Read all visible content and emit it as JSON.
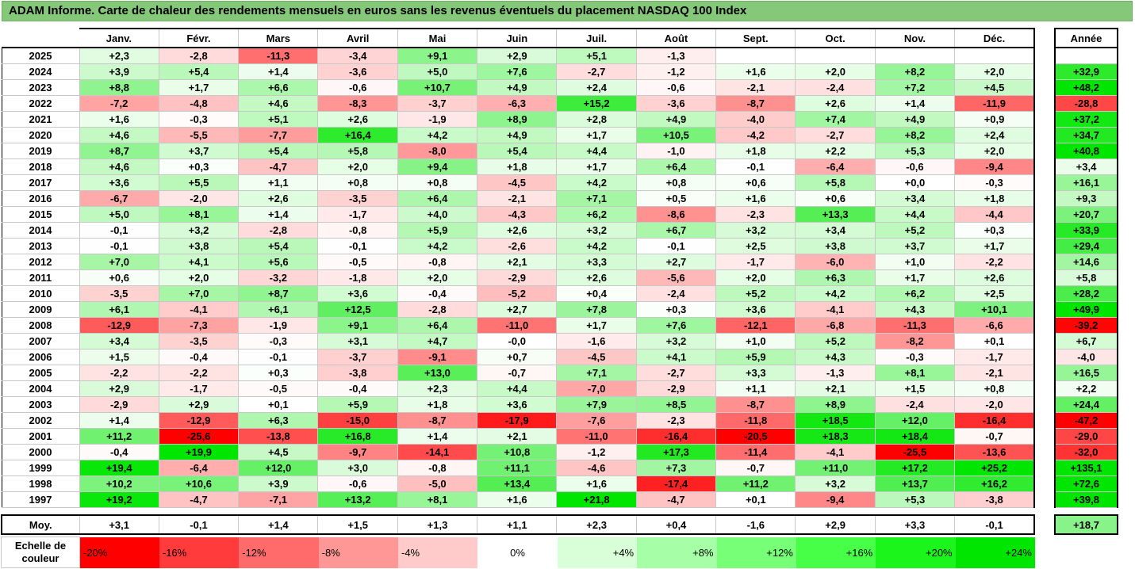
{
  "title": "ADAM Informe. Carte de chaleur des rendements mensuels en euros sans les revenus éventuels du placement NASDAQ 100 Index",
  "chart_data": {
    "type": "heatmap",
    "title": "ADAM Informe. Carte de chaleur des rendements mensuels en euros sans les revenus éventuels du placement NASDAQ 100 Index",
    "months": [
      "Janv.",
      "Févr.",
      "Mars",
      "Avril",
      "Mai",
      "Juin",
      "Juil.",
      "Août",
      "Sept.",
      "Oct.",
      "Nov.",
      "Déc."
    ],
    "year_column_label": "Année",
    "rows": [
      {
        "year": "2025",
        "values": [
          "+2,3",
          "-2,8",
          "-11,3",
          "-3,4",
          "+9,1",
          "+2,9",
          "+5,1",
          "-1,3",
          "",
          "",
          "",
          ""
        ],
        "annual": ""
      },
      {
        "year": "2024",
        "values": [
          "+3,9",
          "+5,4",
          "+1,4",
          "-3,6",
          "+5,0",
          "+7,6",
          "-2,7",
          "-1,2",
          "+1,6",
          "+2,0",
          "+8,2",
          "+2,0"
        ],
        "annual": "+32,9"
      },
      {
        "year": "2023",
        "values": [
          "+8,8",
          "+1,7",
          "+6,6",
          "-0,6",
          "+10,7",
          "+4,9",
          "+2,4",
          "-0,6",
          "-2,1",
          "-2,4",
          "+7,2",
          "+4,5"
        ],
        "annual": "+48,2"
      },
      {
        "year": "2022",
        "values": [
          "-7,2",
          "-4,8",
          "+4,6",
          "-8,3",
          "-3,7",
          "-6,3",
          "+15,2",
          "-3,6",
          "-8,7",
          "+2,6",
          "+1,4",
          "-11,9"
        ],
        "annual": "-28,8"
      },
      {
        "year": "2021",
        "values": [
          "+1,6",
          "-0,3",
          "+5,1",
          "+2,6",
          "-1,9",
          "+8,9",
          "+2,8",
          "+4,9",
          "-4,0",
          "+7,4",
          "+4,9",
          "+0,9"
        ],
        "annual": "+37,2"
      },
      {
        "year": "2020",
        "values": [
          "+4,6",
          "-5,5",
          "-7,7",
          "+16,4",
          "+4,2",
          "+4,9",
          "+1,7",
          "+10,5",
          "-4,2",
          "-2,7",
          "+8,2",
          "+2,4"
        ],
        "annual": "+34,7"
      },
      {
        "year": "2019",
        "values": [
          "+8,7",
          "+3,7",
          "+5,4",
          "+5,8",
          "-8,0",
          "+5,4",
          "+4,4",
          "-1,0",
          "+1,8",
          "+2,2",
          "+5,3",
          "+2,0"
        ],
        "annual": "+40,8"
      },
      {
        "year": "2018",
        "values": [
          "+4,6",
          "+0,3",
          "-4,7",
          "+2,0",
          "+9,4",
          "+1,8",
          "+1,7",
          "+6,4",
          "-0,1",
          "-6,4",
          "-0,6",
          "-9,4"
        ],
        "annual": "+3,4"
      },
      {
        "year": "2017",
        "values": [
          "+3,6",
          "+5,5",
          "+1,1",
          "+0,8",
          "+0,8",
          "-4,5",
          "+4,2",
          "+0,8",
          "+0,6",
          "+5,8",
          "+0,0",
          "-0,3"
        ],
        "annual": "+16,1"
      },
      {
        "year": "2016",
        "values": [
          "-6,7",
          "-2,0",
          "+2,6",
          "-3,5",
          "+6,4",
          "-2,1",
          "+7,1",
          "+0,5",
          "+1,6",
          "+0,6",
          "+3,4",
          "+1,8"
        ],
        "annual": "+9,3"
      },
      {
        "year": "2015",
        "values": [
          "+5,0",
          "+8,1",
          "+1,4",
          "-1,7",
          "+4,0",
          "-4,3",
          "+6,2",
          "-8,6",
          "-2,3",
          "+13,3",
          "+4,4",
          "-4,4"
        ],
        "annual": "+20,7"
      },
      {
        "year": "2014",
        "values": [
          "-0,1",
          "+3,2",
          "-2,8",
          "-0,8",
          "+5,9",
          "+2,6",
          "+3,2",
          "+6,7",
          "+3,2",
          "+3,4",
          "+5,2",
          "+0,3"
        ],
        "annual": "+33,9"
      },
      {
        "year": "2013",
        "values": [
          "-0,1",
          "+3,8",
          "+5,4",
          "-0,1",
          "+4,2",
          "-2,6",
          "+4,2",
          "-0,1",
          "+2,5",
          "+3,8",
          "+3,7",
          "+1,7"
        ],
        "annual": "+29,4"
      },
      {
        "year": "2012",
        "values": [
          "+7,0",
          "+4,1",
          "+5,6",
          "-0,5",
          "-0,8",
          "+2,1",
          "+3,3",
          "+2,7",
          "-1,7",
          "-6,0",
          "+1,0",
          "-2,2"
        ],
        "annual": "+14,6"
      },
      {
        "year": "2011",
        "values": [
          "+0,6",
          "+2,0",
          "-3,2",
          "-1,8",
          "+2,0",
          "-2,9",
          "+2,6",
          "-5,6",
          "+2,0",
          "+6,3",
          "+1,7",
          "+2,6"
        ],
        "annual": "+5,8"
      },
      {
        "year": "2010",
        "values": [
          "-3,5",
          "+7,0",
          "+8,7",
          "+3,6",
          "-0,4",
          "-5,2",
          "+0,4",
          "-2,4",
          "+5,2",
          "+4,2",
          "+6,2",
          "+2,5"
        ],
        "annual": "+28,2"
      },
      {
        "year": "2009",
        "values": [
          "+6,1",
          "-4,1",
          "+6,1",
          "+12,5",
          "-2,8",
          "+2,7",
          "+7,8",
          "+0,3",
          "+3,6",
          "-4,1",
          "+4,3",
          "+10,1"
        ],
        "annual": "+49,9"
      },
      {
        "year": "2008",
        "values": [
          "-12,9",
          "-7,3",
          "-1,9",
          "+9,1",
          "+6,4",
          "-11,0",
          "+1,7",
          "+7,6",
          "-12,1",
          "-6,8",
          "-11,3",
          "-6,6"
        ],
        "annual": "-39,2"
      },
      {
        "year": "2007",
        "values": [
          "+3,4",
          "-3,5",
          "-0,3",
          "+3,1",
          "+4,7",
          "-0,0",
          "-1,6",
          "+3,2",
          "+1,0",
          "+5,2",
          "-8,2",
          "+0,1"
        ],
        "annual": "+6,7"
      },
      {
        "year": "2006",
        "values": [
          "+1,5",
          "-0,4",
          "-0,1",
          "-3,7",
          "-9,1",
          "+0,7",
          "-4,5",
          "+4,1",
          "+5,9",
          "+4,3",
          "-0,3",
          "-1,7"
        ],
        "annual": "-4,0"
      },
      {
        "year": "2005",
        "values": [
          "-2,2",
          "-2,2",
          "+0,3",
          "-3,8",
          "+13,0",
          "-0,7",
          "+7,1",
          "-2,7",
          "+3,3",
          "-1,3",
          "+8,1",
          "-2,1"
        ],
        "annual": "+16,5"
      },
      {
        "year": "2004",
        "values": [
          "+2,9",
          "-1,7",
          "-0,5",
          "-0,4",
          "+2,3",
          "+4,4",
          "-7,0",
          "-2,9",
          "+1,1",
          "+2,1",
          "+1,5",
          "+0,8"
        ],
        "annual": "+2,2"
      },
      {
        "year": "2003",
        "values": [
          "-2,9",
          "+2,9",
          "+0,1",
          "+5,9",
          "+1,8",
          "+3,6",
          "+7,9",
          "+8,5",
          "-8,7",
          "+8,9",
          "-2,4",
          "-2,0"
        ],
        "annual": "+24,4"
      },
      {
        "year": "2002",
        "values": [
          "+1,4",
          "-12,9",
          "+6,3",
          "-15,0",
          "-8,7",
          "-17,9",
          "-7,6",
          "-2,3",
          "-11,8",
          "+18,5",
          "+12,0",
          "-16,4"
        ],
        "annual": "-47,2"
      },
      {
        "year": "2001",
        "values": [
          "+11,2",
          "-25,6",
          "-13,8",
          "+16,8",
          "+1,4",
          "+2,1",
          "-11,0",
          "-16,4",
          "-20,5",
          "+18,3",
          "+18,4",
          "-0,7"
        ],
        "annual": "-29,0"
      },
      {
        "year": "2000",
        "values": [
          "-0,4",
          "+19,9",
          "+4,5",
          "-9,7",
          "-14,1",
          "+10,8",
          "-1,2",
          "+17,3",
          "-11,4",
          "-4,1",
          "-25,5",
          "-13,6"
        ],
        "annual": "-32,0"
      },
      {
        "year": "1999",
        "values": [
          "+19,4",
          "-6,4",
          "+12,0",
          "+3,0",
          "-0,8",
          "+11,1",
          "-4,6",
          "+7,3",
          "-0,7",
          "+11,0",
          "+17,2",
          "+25,2"
        ],
        "annual": "+135,1"
      },
      {
        "year": "1998",
        "values": [
          "+10,2",
          "+10,6",
          "+3,9",
          "-0,6",
          "-5,0",
          "+13,4",
          "+1,6",
          "-17,4",
          "+11,2",
          "+3,2",
          "+13,7",
          "+16,2"
        ],
        "annual": "+72,6"
      },
      {
        "year": "1997",
        "values": [
          "+19,2",
          "-4,7",
          "-7,1",
          "+13,2",
          "+8,1",
          "+1,6",
          "+21,8",
          "-4,7",
          "+0,1",
          "-9,4",
          "+5,3",
          "-3,8"
        ],
        "annual": "+39,8"
      }
    ],
    "average": {
      "label": "Moy.",
      "values": [
        "+3,1",
        "-0,1",
        "+1,4",
        "+1,5",
        "+1,3",
        "+1,1",
        "+2,3",
        "+0,4",
        "-1,6",
        "+2,9",
        "+3,3",
        "-0,1"
      ],
      "annual": "+18,7"
    },
    "color_scale": {
      "label": "Echelle de couleur",
      "stops": [
        {
          "label": "-20%",
          "value": -20,
          "color": "#ff0000"
        },
        {
          "label": "-16%",
          "value": -16,
          "color": "#ff3b3b"
        },
        {
          "label": "-12%",
          "value": -12,
          "color": "#ff6a6a"
        },
        {
          "label": "-8%",
          "value": -8,
          "color": "#ff9797"
        },
        {
          "label": "-4%",
          "value": -4,
          "color": "#ffcaca"
        },
        {
          "label": "0%",
          "value": 0,
          "color": "#ffffff"
        },
        {
          "label": "+4%",
          "value": 4,
          "color": "#d8ffd8"
        },
        {
          "label": "+8%",
          "value": 8,
          "color": "#a6ffa6"
        },
        {
          "label": "+12%",
          "value": 12,
          "color": "#77ff77"
        },
        {
          "label": "+16%",
          "value": 16,
          "color": "#47ff47"
        },
        {
          "label": "+20%",
          "value": 20,
          "color": "#1cf51c"
        },
        {
          "label": "+24%",
          "value": 24,
          "color": "#00e600"
        }
      ]
    },
    "annual_color_scale_max": 40
  }
}
